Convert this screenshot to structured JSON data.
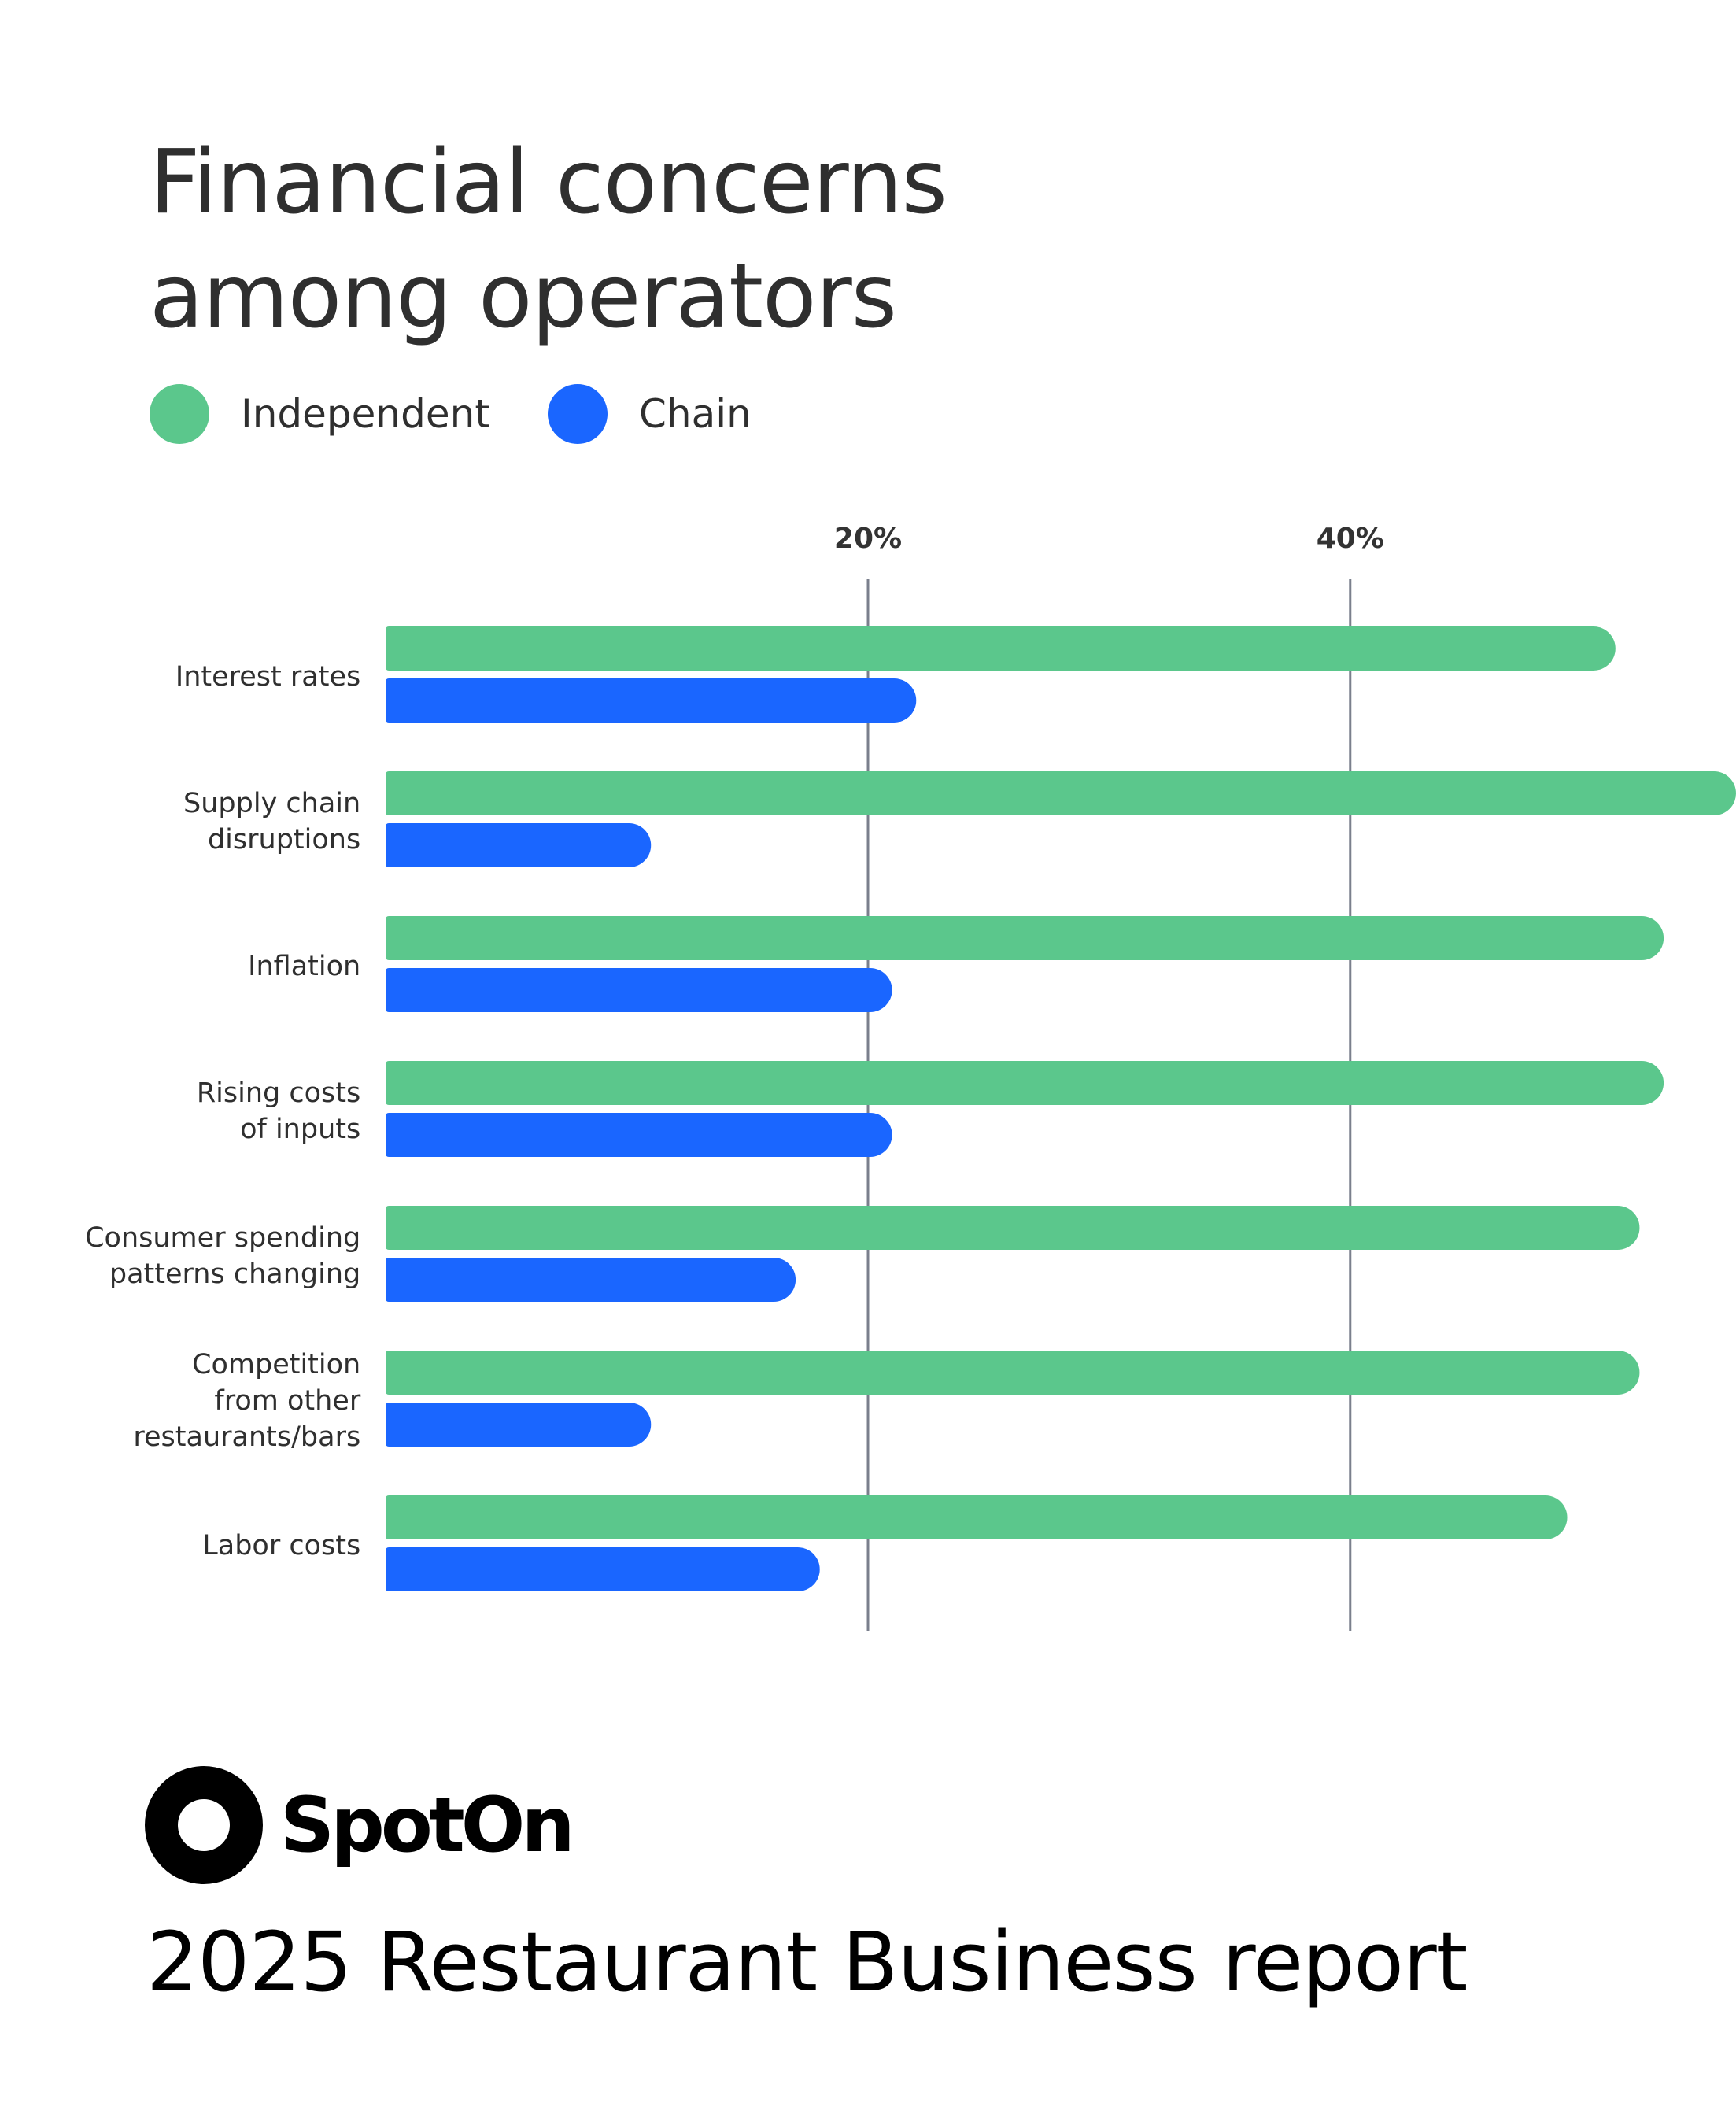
{
  "colors": {
    "independent": "#5bc78c",
    "chain": "#1a66ff",
    "gridline": "#7a7f8c",
    "text": "#2f2f2f"
  },
  "chart_data": {
    "type": "bar",
    "orientation": "horizontal",
    "title": "Financial concerns among operators",
    "title_lines": [
      "Financial concerns",
      "among operators"
    ],
    "legend_placement": "top-left",
    "xlabel": "",
    "ylabel": "",
    "xlim": [
      -16,
      56
    ],
    "gridlines": [
      20,
      40
    ],
    "tick_labels": [
      "20%",
      "40%"
    ],
    "categories": [
      [
        "Interest rates"
      ],
      [
        "Supply chain",
        "disruptions"
      ],
      [
        "Inflation"
      ],
      [
        "Rising costs",
        "of inputs"
      ],
      [
        "Consumer spending",
        "patterns changing"
      ],
      [
        "Competition",
        "from other",
        "restaurants/bars"
      ],
      [
        "Labor costs"
      ]
    ],
    "series": [
      {
        "name": "Independent",
        "values": [
          51,
          56,
          53,
          53,
          52,
          52,
          49
        ]
      },
      {
        "name": "Chain",
        "values": [
          22,
          11,
          21,
          21,
          17,
          11,
          18
        ]
      }
    ]
  },
  "brand": {
    "name": "SpotOn"
  },
  "report_title": "2025 Restaurant Business report"
}
